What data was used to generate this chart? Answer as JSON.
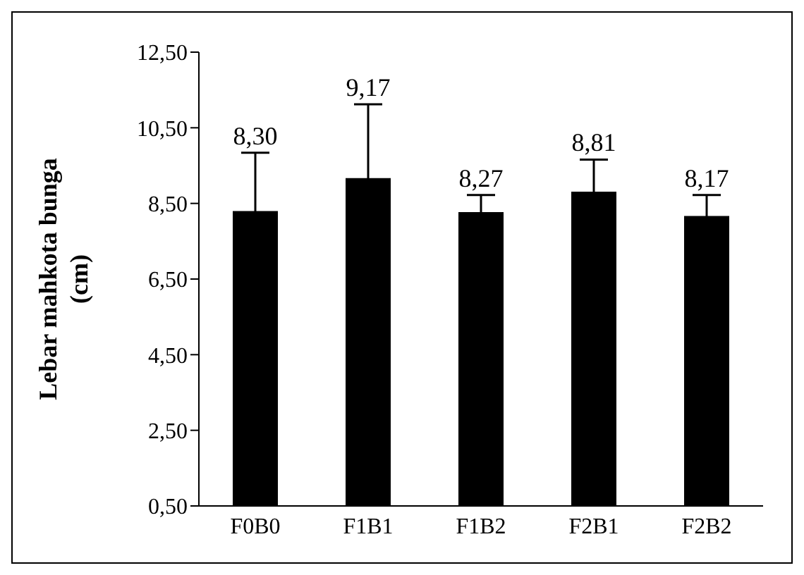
{
  "chart_data": {
    "type": "bar",
    "ylabel": "Lebar mahkota bunga (cm)",
    "categories": [
      "F0B0",
      "F1B1",
      "F1B2",
      "F2B1",
      "F2B2"
    ],
    "values": [
      8.3,
      9.17,
      8.27,
      8.81,
      8.17
    ],
    "value_labels": [
      "8,30",
      "9,17",
      "8,27",
      "8,81",
      "8,17"
    ],
    "errors": [
      1.54,
      1.95,
      0.45,
      0.85,
      0.55
    ],
    "color": "#000000",
    "ylim": [
      0.5,
      12.5
    ],
    "yticks": [
      {
        "value": 0.5,
        "label": "0,50"
      },
      {
        "value": 2.5,
        "label": "2,50"
      },
      {
        "value": 4.5,
        "label": "4,50"
      },
      {
        "value": 6.5,
        "label": "6,50"
      },
      {
        "value": 8.5,
        "label": "8,50"
      },
      {
        "value": 10.5,
        "label": "10,50"
      },
      {
        "value": 12.5,
        "label": "12,50"
      }
    ],
    "grid": false,
    "legend": false
  }
}
